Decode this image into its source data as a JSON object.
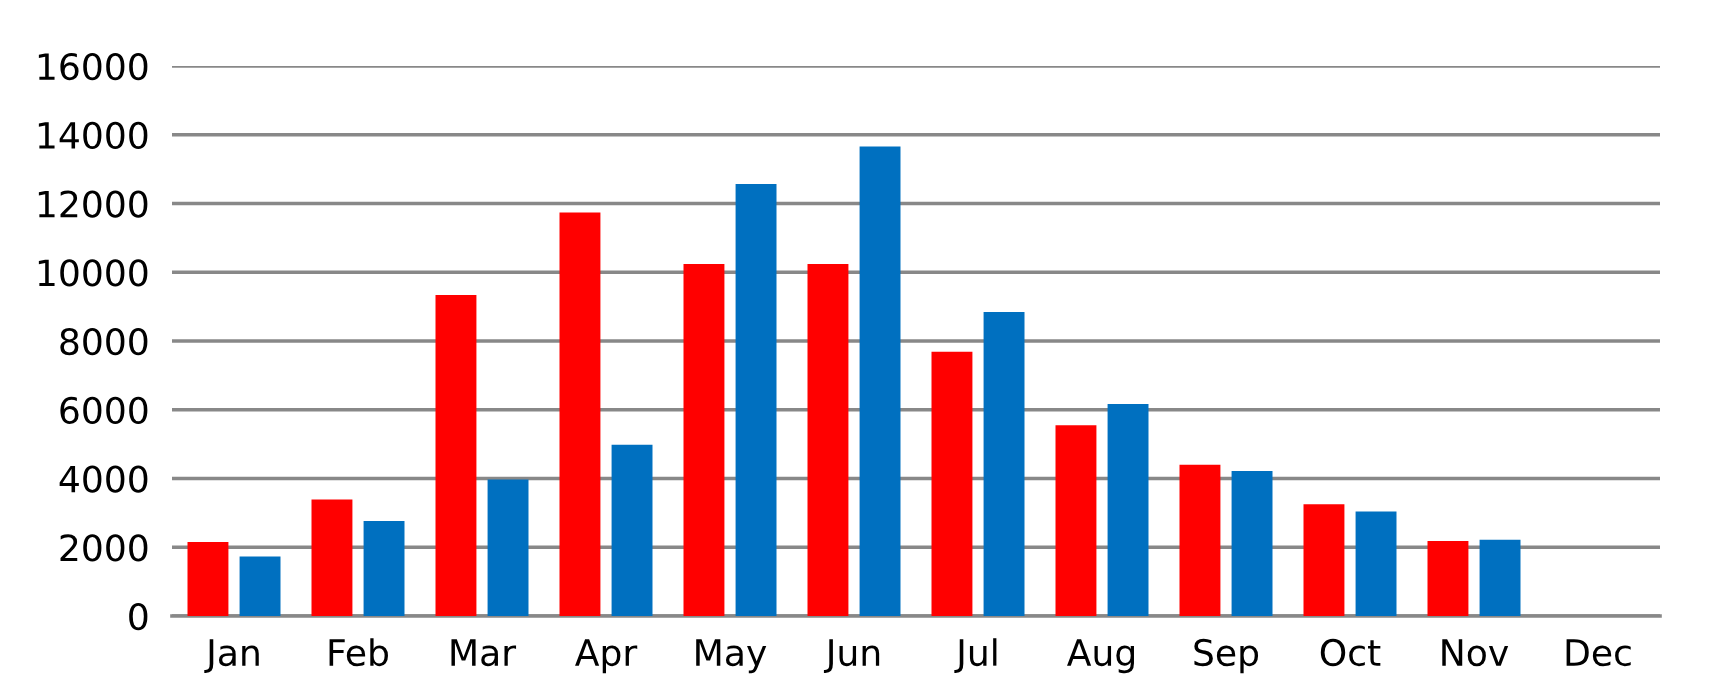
{
  "chart_data": {
    "type": "bar",
    "categories": [
      "Jan",
      "Feb",
      "Mar",
      "Apr",
      "May",
      "Jun",
      "Jul",
      "Aug",
      "Sep",
      "Oct",
      "Nov",
      "Dec"
    ],
    "series": [
      {
        "color": "#ff0000",
        "values": [
          2150,
          3390,
          9340,
          11740,
          10240,
          10240,
          7690,
          5550,
          4400,
          3250,
          2180,
          null
        ]
      },
      {
        "color": "#0070c0",
        "values": [
          1730,
          2760,
          3970,
          4980,
          12570,
          13660,
          8840,
          6170,
          4220,
          3040,
          2220,
          null
        ]
      }
    ],
    "ylim": [
      0,
      16000
    ],
    "yticks": [
      0,
      2000,
      4000,
      6000,
      8000,
      10000,
      12000,
      14000,
      16000
    ],
    "grid": "y"
  }
}
